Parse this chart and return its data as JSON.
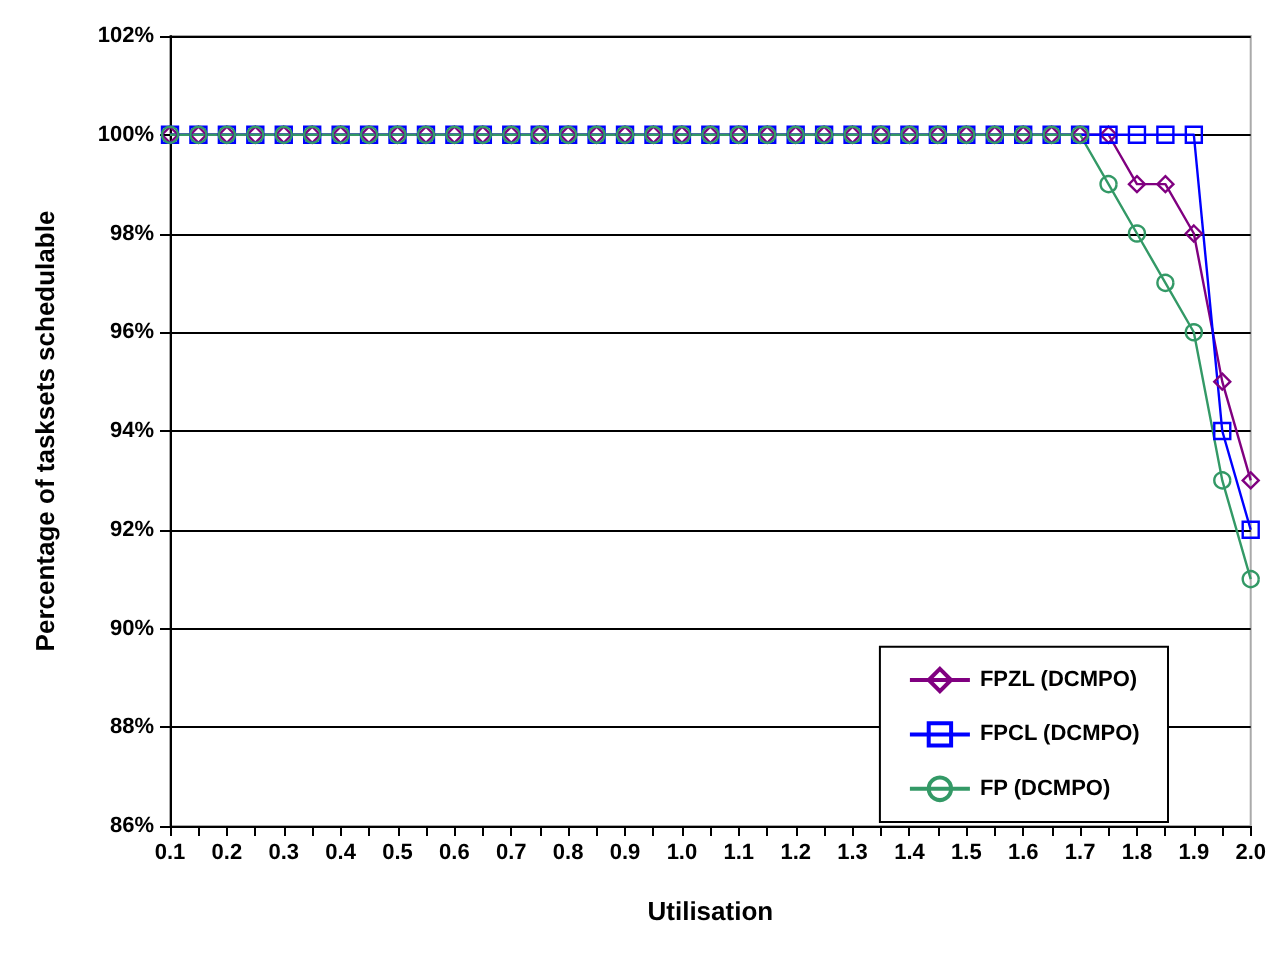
{
  "chart_data": {
    "type": "line",
    "xlabel": "Utilisation",
    "ylabel": "Percentage of tasksets schedulable",
    "categories": [
      "0.1",
      null,
      "0.2",
      null,
      "0.3",
      null,
      "0.4",
      null,
      "0.5",
      null,
      "0.6",
      null,
      "0.7",
      null,
      "0.8",
      null,
      "0.9",
      null,
      "1.0",
      null,
      "1.1",
      null,
      "1.2",
      null,
      "1.3",
      null,
      "1.4",
      null,
      "1.5",
      null,
      "1.6",
      null,
      "1.7",
      null,
      "1.8",
      null,
      "1.9",
      null,
      "2.0"
    ],
    "series": [
      {
        "name": "FPZL (DCMPO)",
        "color": "#800080",
        "marker": "diamond",
        "values": [
          100,
          100,
          100,
          100,
          100,
          100,
          100,
          100,
          100,
          100,
          100,
          100,
          100,
          100,
          100,
          100,
          100,
          100,
          100,
          100,
          100,
          100,
          100,
          100,
          100,
          100,
          100,
          100,
          100,
          100,
          100,
          100,
          100,
          100,
          99,
          99,
          98,
          95,
          93
        ]
      },
      {
        "name": "FPCL (DCMPO)",
        "color": "#0000ff",
        "marker": "square",
        "values": [
          100,
          100,
          100,
          100,
          100,
          100,
          100,
          100,
          100,
          100,
          100,
          100,
          100,
          100,
          100,
          100,
          100,
          100,
          100,
          100,
          100,
          100,
          100,
          100,
          100,
          100,
          100,
          100,
          100,
          100,
          100,
          100,
          100,
          100,
          100,
          100,
          100,
          94,
          92
        ]
      },
      {
        "name": "FP (DCMPO)",
        "color": "#339966",
        "marker": "circle",
        "values": [
          100,
          100,
          100,
          100,
          100,
          100,
          100,
          100,
          100,
          100,
          100,
          100,
          100,
          100,
          100,
          100,
          100,
          100,
          100,
          100,
          100,
          100,
          100,
          100,
          100,
          100,
          100,
          100,
          100,
          100,
          100,
          100,
          100,
          99,
          98,
          97,
          96,
          93,
          91
        ]
      }
    ],
    "ylim": [
      86,
      102
    ],
    "yticks": [
      {
        "value": 86,
        "label": "86%"
      },
      {
        "value": 88,
        "label": "88%"
      },
      {
        "value": 90,
        "label": "90%"
      },
      {
        "value": 92,
        "label": "92%"
      },
      {
        "value": 94,
        "label": "94%"
      },
      {
        "value": 96,
        "label": "96%"
      },
      {
        "value": 98,
        "label": "98%"
      },
      {
        "value": 100,
        "label": "100%"
      },
      {
        "value": 102,
        "label": "102%"
      }
    ],
    "grid": "y",
    "legend": "bottom right",
    "line_style": "solid"
  }
}
